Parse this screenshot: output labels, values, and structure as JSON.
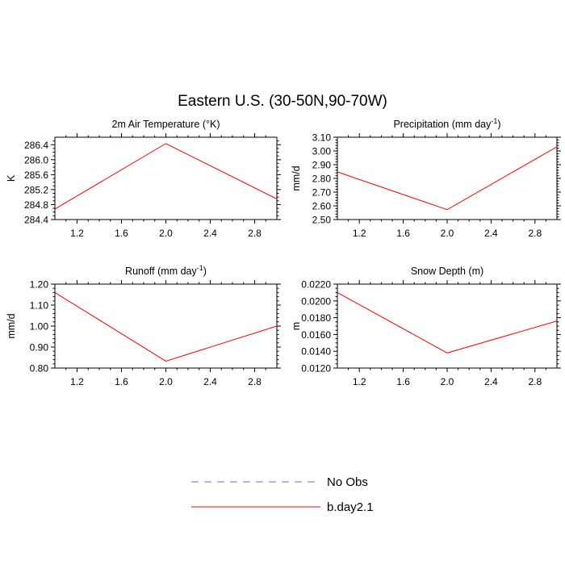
{
  "figure": {
    "title": "Eastern U.S. (30-50N,90-70W)"
  },
  "legend": [
    {
      "label": "No Obs",
      "color": "#6666ff",
      "dash": true
    },
    {
      "label": "b.day2.1",
      "color": "#ff0000",
      "dash": false
    }
  ],
  "chart_data": [
    {
      "type": "line",
      "title": "2m Air Temperature (°K)",
      "xlabel": "",
      "ylabel": "K",
      "xlim": [
        1,
        3
      ],
      "ylim": [
        284.4,
        286.6
      ],
      "xticks": [
        1.2,
        1.6,
        2.0,
        2.4,
        2.8
      ],
      "yticks": [
        284.4,
        284.8,
        285.2,
        285.6,
        286.0,
        286.4
      ],
      "yticks_minor_step": 0.1,
      "ytick_decimals": 1,
      "series": [
        {
          "name": "b.day2.1",
          "color": "#ff0000",
          "x": [
            1,
            2,
            3
          ],
          "y": [
            284.68,
            286.43,
            284.95
          ]
        }
      ]
    },
    {
      "type": "line",
      "title": "Precipitation (mm day",
      "title_sup": "-1",
      "title_end": ")",
      "xlabel": "",
      "ylabel": "mm/d",
      "xlim": [
        1,
        3
      ],
      "ylim": [
        2.5,
        3.1
      ],
      "xticks": [
        1.2,
        1.6,
        2.0,
        2.4,
        2.8
      ],
      "yticks": [
        2.5,
        2.6,
        2.7,
        2.8,
        2.9,
        3.0,
        3.1
      ],
      "yticks_minor_step": 0.02,
      "ytick_decimals": 2,
      "series": [
        {
          "name": "b.day2.1",
          "color": "#ff0000",
          "x": [
            1,
            2,
            3
          ],
          "y": [
            2.847,
            2.572,
            3.03
          ]
        }
      ]
    },
    {
      "type": "line",
      "title": "Runoff (mm day",
      "title_sup": "-1",
      "title_end": ")",
      "xlabel": "",
      "ylabel": "mm/d",
      "xlim": [
        1,
        3
      ],
      "ylim": [
        0.8,
        1.2
      ],
      "xticks": [
        1.2,
        1.6,
        2.0,
        2.4,
        2.8
      ],
      "yticks": [
        0.8,
        0.9,
        1.0,
        1.1,
        1.2
      ],
      "yticks_minor_step": 0.02,
      "ytick_decimals": 2,
      "series": [
        {
          "name": "b.day2.1",
          "color": "#ff0000",
          "x": [
            1,
            2,
            3
          ],
          "y": [
            1.16,
            0.833,
            1.0
          ]
        }
      ]
    },
    {
      "type": "line",
      "title": "Snow Depth (m)",
      "xlabel": "",
      "ylabel": "m",
      "xlim": [
        1,
        3
      ],
      "ylim": [
        0.012,
        0.022
      ],
      "xticks": [
        1.2,
        1.6,
        2.0,
        2.4,
        2.8
      ],
      "yticks": [
        0.012,
        0.014,
        0.016,
        0.018,
        0.02,
        0.022
      ],
      "yticks_minor_step": 0.0005,
      "ytick_decimals": 4,
      "series": [
        {
          "name": "b.day2.1",
          "color": "#ff0000",
          "x": [
            1,
            2,
            3
          ],
          "y": [
            0.021,
            0.0138,
            0.0176
          ]
        }
      ]
    }
  ]
}
